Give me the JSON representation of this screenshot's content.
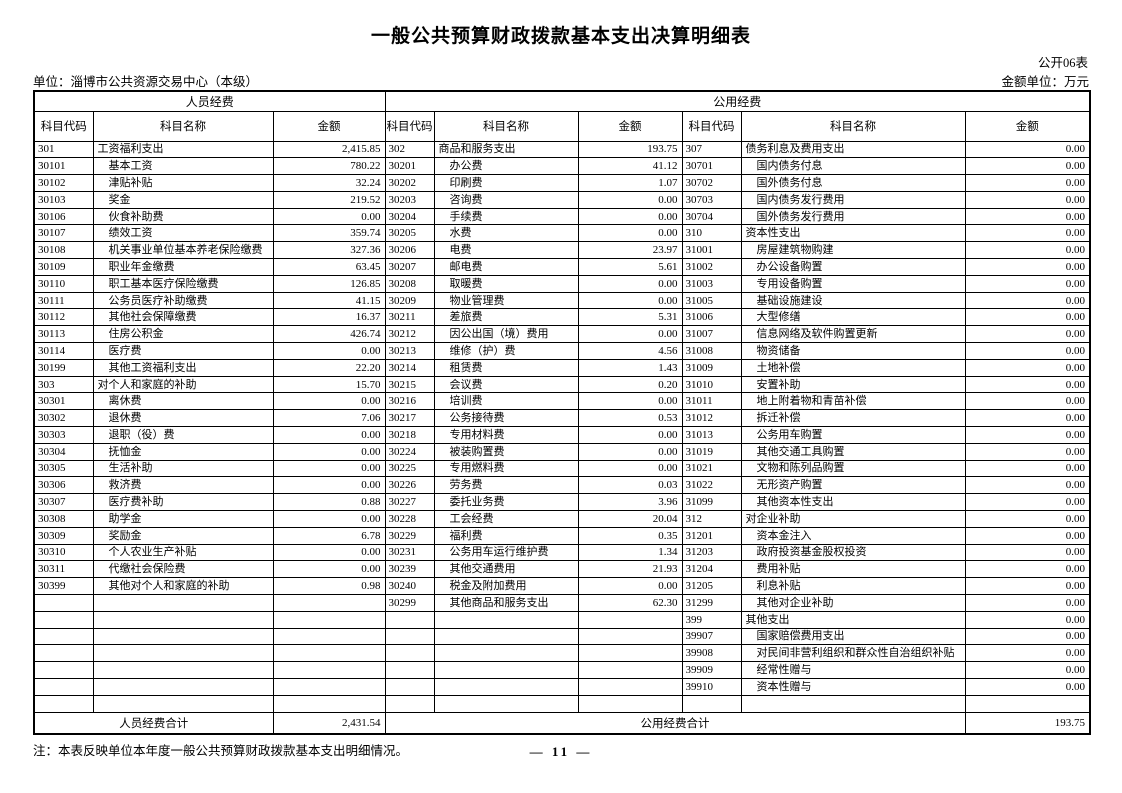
{
  "page": {
    "title": "一般公共预算财政拨款基本支出决算明细表",
    "form_code": "公开06表",
    "unit_label": "单位：淄博市公共资源交易中心（本级）",
    "amount_unit_label": "金额单位：万元",
    "note": "注：本表反映单位本年度一般公共预算财政拨款基本支出明细情况。",
    "page_number": "— 11 —"
  },
  "table": {
    "group_headers": [
      "人员经费",
      "公用经费"
    ],
    "column_headers": [
      "科目代码",
      "科目名称",
      "金额",
      "科目代码",
      "科目名称",
      "金额",
      "科目代码",
      "科目名称",
      "金额"
    ],
    "rows": [
      [
        [
          "301",
          "工资福利支出",
          "2,415.85",
          0
        ],
        [
          "302",
          "商品和服务支出",
          "193.75",
          0
        ],
        [
          "307",
          "债务利息及费用支出",
          "0.00",
          0
        ]
      ],
      [
        [
          "30101",
          "基本工资",
          "780.22",
          1
        ],
        [
          "30201",
          "办公费",
          "41.12",
          1
        ],
        [
          "30701",
          "国内债务付息",
          "0.00",
          1
        ]
      ],
      [
        [
          "30102",
          "津贴补贴",
          "32.24",
          1
        ],
        [
          "30202",
          "印刷费",
          "1.07",
          1
        ],
        [
          "30702",
          "国外债务付息",
          "0.00",
          1
        ]
      ],
      [
        [
          "30103",
          "奖金",
          "219.52",
          1
        ],
        [
          "30203",
          "咨询费",
          "0.00",
          1
        ],
        [
          "30703",
          "国内债务发行费用",
          "0.00",
          1
        ]
      ],
      [
        [
          "30106",
          "伙食补助费",
          "0.00",
          1
        ],
        [
          "30204",
          "手续费",
          "0.00",
          1
        ],
        [
          "30704",
          "国外债务发行费用",
          "0.00",
          1
        ]
      ],
      [
        [
          "30107",
          "绩效工资",
          "359.74",
          1
        ],
        [
          "30205",
          "水费",
          "0.00",
          1
        ],
        [
          "310",
          "资本性支出",
          "0.00",
          0
        ]
      ],
      [
        [
          "30108",
          "机关事业单位基本养老保险缴费",
          "327.36",
          1
        ],
        [
          "30206",
          "电费",
          "23.97",
          1
        ],
        [
          "31001",
          "房屋建筑物购建",
          "0.00",
          1
        ]
      ],
      [
        [
          "30109",
          "职业年金缴费",
          "63.45",
          1
        ],
        [
          "30207",
          "邮电费",
          "5.61",
          1
        ],
        [
          "31002",
          "办公设备购置",
          "0.00",
          1
        ]
      ],
      [
        [
          "30110",
          "职工基本医疗保险缴费",
          "126.85",
          1
        ],
        [
          "30208",
          "取暖费",
          "0.00",
          1
        ],
        [
          "31003",
          "专用设备购置",
          "0.00",
          1
        ]
      ],
      [
        [
          "30111",
          "公务员医疗补助缴费",
          "41.15",
          1
        ],
        [
          "30209",
          "物业管理费",
          "0.00",
          1
        ],
        [
          "31005",
          "基础设施建设",
          "0.00",
          1
        ]
      ],
      [
        [
          "30112",
          "其他社会保障缴费",
          "16.37",
          1
        ],
        [
          "30211",
          "差旅费",
          "5.31",
          1
        ],
        [
          "31006",
          "大型修缮",
          "0.00",
          1
        ]
      ],
      [
        [
          "30113",
          "住房公积金",
          "426.74",
          1
        ],
        [
          "30212",
          "因公出国（境）费用",
          "0.00",
          1
        ],
        [
          "31007",
          "信息网络及软件购置更新",
          "0.00",
          1
        ]
      ],
      [
        [
          "30114",
          "医疗费",
          "0.00",
          1
        ],
        [
          "30213",
          "维修（护）费",
          "4.56",
          1
        ],
        [
          "31008",
          "物资储备",
          "0.00",
          1
        ]
      ],
      [
        [
          "30199",
          "其他工资福利支出",
          "22.20",
          1
        ],
        [
          "30214",
          "租赁费",
          "1.43",
          1
        ],
        [
          "31009",
          "土地补偿",
          "0.00",
          1
        ]
      ],
      [
        [
          "303",
          "对个人和家庭的补助",
          "15.70",
          0
        ],
        [
          "30215",
          "会议费",
          "0.20",
          1
        ],
        [
          "31010",
          "安置补助",
          "0.00",
          1
        ]
      ],
      [
        [
          "30301",
          "离休费",
          "0.00",
          1
        ],
        [
          "30216",
          "培训费",
          "0.00",
          1
        ],
        [
          "31011",
          "地上附着物和青苗补偿",
          "0.00",
          1
        ]
      ],
      [
        [
          "30302",
          "退休费",
          "7.06",
          1
        ],
        [
          "30217",
          "公务接待费",
          "0.53",
          1
        ],
        [
          "31012",
          "拆迁补偿",
          "0.00",
          1
        ]
      ],
      [
        [
          "30303",
          "退职（役）费",
          "0.00",
          1
        ],
        [
          "30218",
          "专用材料费",
          "0.00",
          1
        ],
        [
          "31013",
          "公务用车购置",
          "0.00",
          1
        ]
      ],
      [
        [
          "30304",
          "抚恤金",
          "0.00",
          1
        ],
        [
          "30224",
          "被装购置费",
          "0.00",
          1
        ],
        [
          "31019",
          "其他交通工具购置",
          "0.00",
          1
        ]
      ],
      [
        [
          "30305",
          "生活补助",
          "0.00",
          1
        ],
        [
          "30225",
          "专用燃料费",
          "0.00",
          1
        ],
        [
          "31021",
          "文物和陈列品购置",
          "0.00",
          1
        ]
      ],
      [
        [
          "30306",
          "救济费",
          "0.00",
          1
        ],
        [
          "30226",
          "劳务费",
          "0.03",
          1
        ],
        [
          "31022",
          "无形资产购置",
          "0.00",
          1
        ]
      ],
      [
        [
          "30307",
          "医疗费补助",
          "0.88",
          1
        ],
        [
          "30227",
          "委托业务费",
          "3.96",
          1
        ],
        [
          "31099",
          "其他资本性支出",
          "0.00",
          1
        ]
      ],
      [
        [
          "30308",
          "助学金",
          "0.00",
          1
        ],
        [
          "30228",
          "工会经费",
          "20.04",
          1
        ],
        [
          "312",
          "对企业补助",
          "0.00",
          0
        ]
      ],
      [
        [
          "30309",
          "奖励金",
          "6.78",
          1
        ],
        [
          "30229",
          "福利费",
          "0.35",
          1
        ],
        [
          "31201",
          "资本金注入",
          "0.00",
          1
        ]
      ],
      [
        [
          "30310",
          "个人农业生产补贴",
          "0.00",
          1
        ],
        [
          "30231",
          "公务用车运行维护费",
          "1.34",
          1
        ],
        [
          "31203",
          "政府投资基金股权投资",
          "0.00",
          1
        ]
      ],
      [
        [
          "30311",
          "代缴社会保险费",
          "0.00",
          1
        ],
        [
          "30239",
          "其他交通费用",
          "21.93",
          1
        ],
        [
          "31204",
          "费用补贴",
          "0.00",
          1
        ]
      ],
      [
        [
          "30399",
          "其他对个人和家庭的补助",
          "0.98",
          1
        ],
        [
          "30240",
          "税金及附加费用",
          "0.00",
          1
        ],
        [
          "31205",
          "利息补贴",
          "0.00",
          1
        ]
      ],
      [
        [],
        [
          "30299",
          "其他商品和服务支出",
          "62.30",
          1
        ],
        [
          "31299",
          "其他对企业补助",
          "0.00",
          1
        ]
      ],
      [
        [],
        [],
        [
          "399",
          "其他支出",
          "0.00",
          0
        ]
      ],
      [
        [],
        [],
        [
          "39907",
          "国家赔偿费用支出",
          "0.00",
          1
        ]
      ],
      [
        [],
        [],
        [
          "39908",
          "对民间非营利组织和群众性自治组织补贴",
          "0.00",
          1
        ]
      ],
      [
        [],
        [],
        [
          "39909",
          "经常性赠与",
          "0.00",
          1
        ]
      ],
      [
        [],
        [],
        [
          "39910",
          "资本性赠与",
          "0.00",
          1
        ]
      ],
      [
        [],
        [],
        []
      ]
    ],
    "footer": {
      "personnel_total_label": "人员经费合计",
      "personnel_total": "2,431.54",
      "public_total_label": "公用经费合计",
      "public_total": "193.75"
    }
  }
}
